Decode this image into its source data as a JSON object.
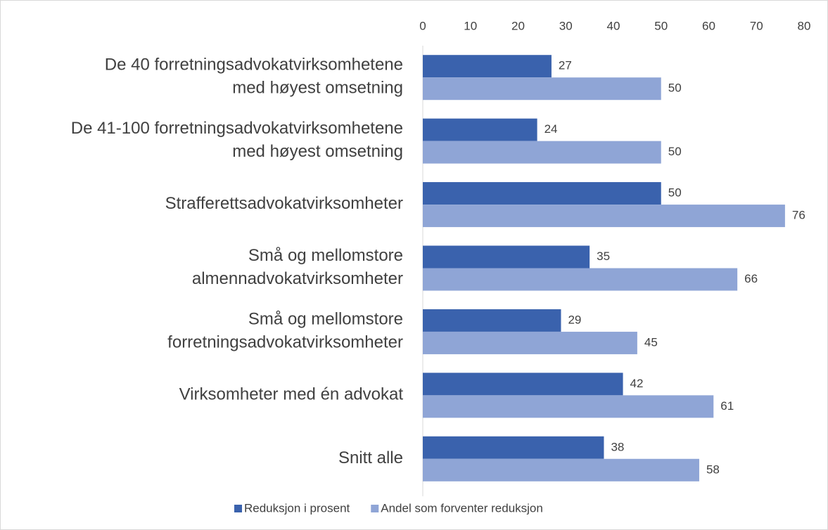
{
  "chart_data": {
    "type": "bar",
    "orientation": "horizontal",
    "categories": [
      "De 40 forretningsadvokatvirksomhetene\nmed høyest omsetning",
      "De 41-100 forretningsadvokatvirksomhetene\nmed høyest omsetning",
      "Strafferettsadvokatvirksomheter",
      "Små og mellomstore\nalmennadvokatvirksomheter",
      "Små og mellomstore\nforretningsadvokatvirksomheter",
      "Virksomheter med én advokat",
      "Snitt alle"
    ],
    "series": [
      {
        "name": "Reduksjon i prosent",
        "color": "#3a62ad",
        "values": [
          27,
          24,
          50,
          35,
          29,
          42,
          38
        ]
      },
      {
        "name": "Andel som forventer reduksjon",
        "color": "#8fa5d6",
        "values": [
          50,
          50,
          76,
          66,
          45,
          61,
          58
        ]
      }
    ],
    "xlim": [
      0,
      80
    ],
    "xticks": [
      0,
      10,
      20,
      30,
      40,
      50,
      60,
      70,
      80
    ],
    "xaxis_position": "top",
    "legend": "bottom",
    "data_labels": true
  }
}
